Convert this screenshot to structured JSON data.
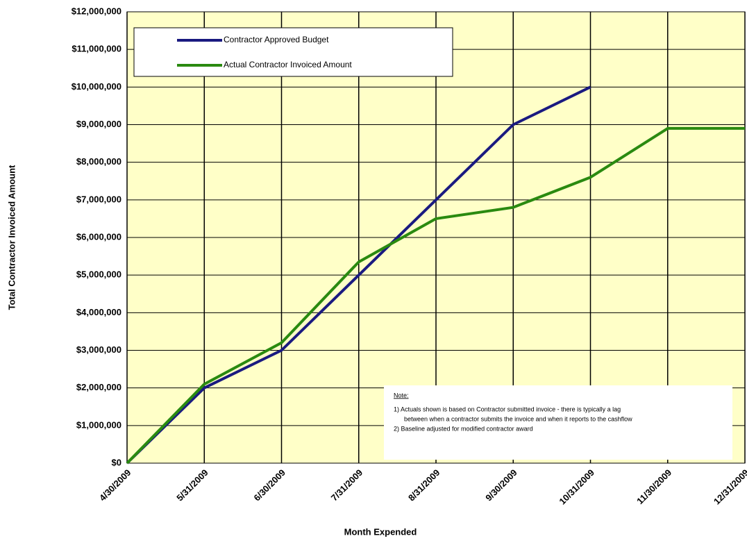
{
  "chart_data": {
    "type": "line",
    "x_label": "Month Expended",
    "y_label": "Total Contractor Invoiced Amount",
    "categories": [
      "4/30/2009",
      "5/31/2009",
      "6/30/2009",
      "7/31/2009",
      "8/31/2009",
      "9/30/2009",
      "10/31/2009",
      "11/30/2009",
      "12/31/2009"
    ],
    "series": [
      {
        "name": "Contractor Approved Budget",
        "color": "#1a1a80",
        "values": [
          0,
          2000000,
          3000000,
          5000000,
          7000000,
          9000000,
          10000000,
          null,
          null
        ]
      },
      {
        "name": "Actual Contractor Invoiced Amount",
        "color": "#2a8a10",
        "values": [
          0,
          2100000,
          3200000,
          5350000,
          6500000,
          6800000,
          7600000,
          8900000,
          8900000
        ]
      }
    ],
    "ylim": [
      0,
      12000000
    ],
    "yticks": [
      {
        "value": 0,
        "label": "$0"
      },
      {
        "value": 1000000,
        "label": "$1,000,000"
      },
      {
        "value": 2000000,
        "label": "$2,000,000"
      },
      {
        "value": 3000000,
        "label": "$3,000,000"
      },
      {
        "value": 4000000,
        "label": "$4,000,000"
      },
      {
        "value": 5000000,
        "label": "$5,000,000"
      },
      {
        "value": 6000000,
        "label": "$6,000,000"
      },
      {
        "value": 7000000,
        "label": "$7,000,000"
      },
      {
        "value": 8000000,
        "label": "$8,000,000"
      },
      {
        "value": 9000000,
        "label": "$9,000,000"
      },
      {
        "value": 10000000,
        "label": "$10,000,000"
      },
      {
        "value": 11000000,
        "label": "$11,000,000"
      },
      {
        "value": 12000000,
        "label": "$12,000,000"
      }
    ],
    "grid": true,
    "note": {
      "title": "Note:",
      "lines": [
        "1) Actuals shown is based on Contractor submitted invoice - there is typically a lag",
        "between when a contractor submits the invoice and when it reports to the cashflow",
        "2) Baseline adjusted for modified contractor award"
      ]
    }
  }
}
